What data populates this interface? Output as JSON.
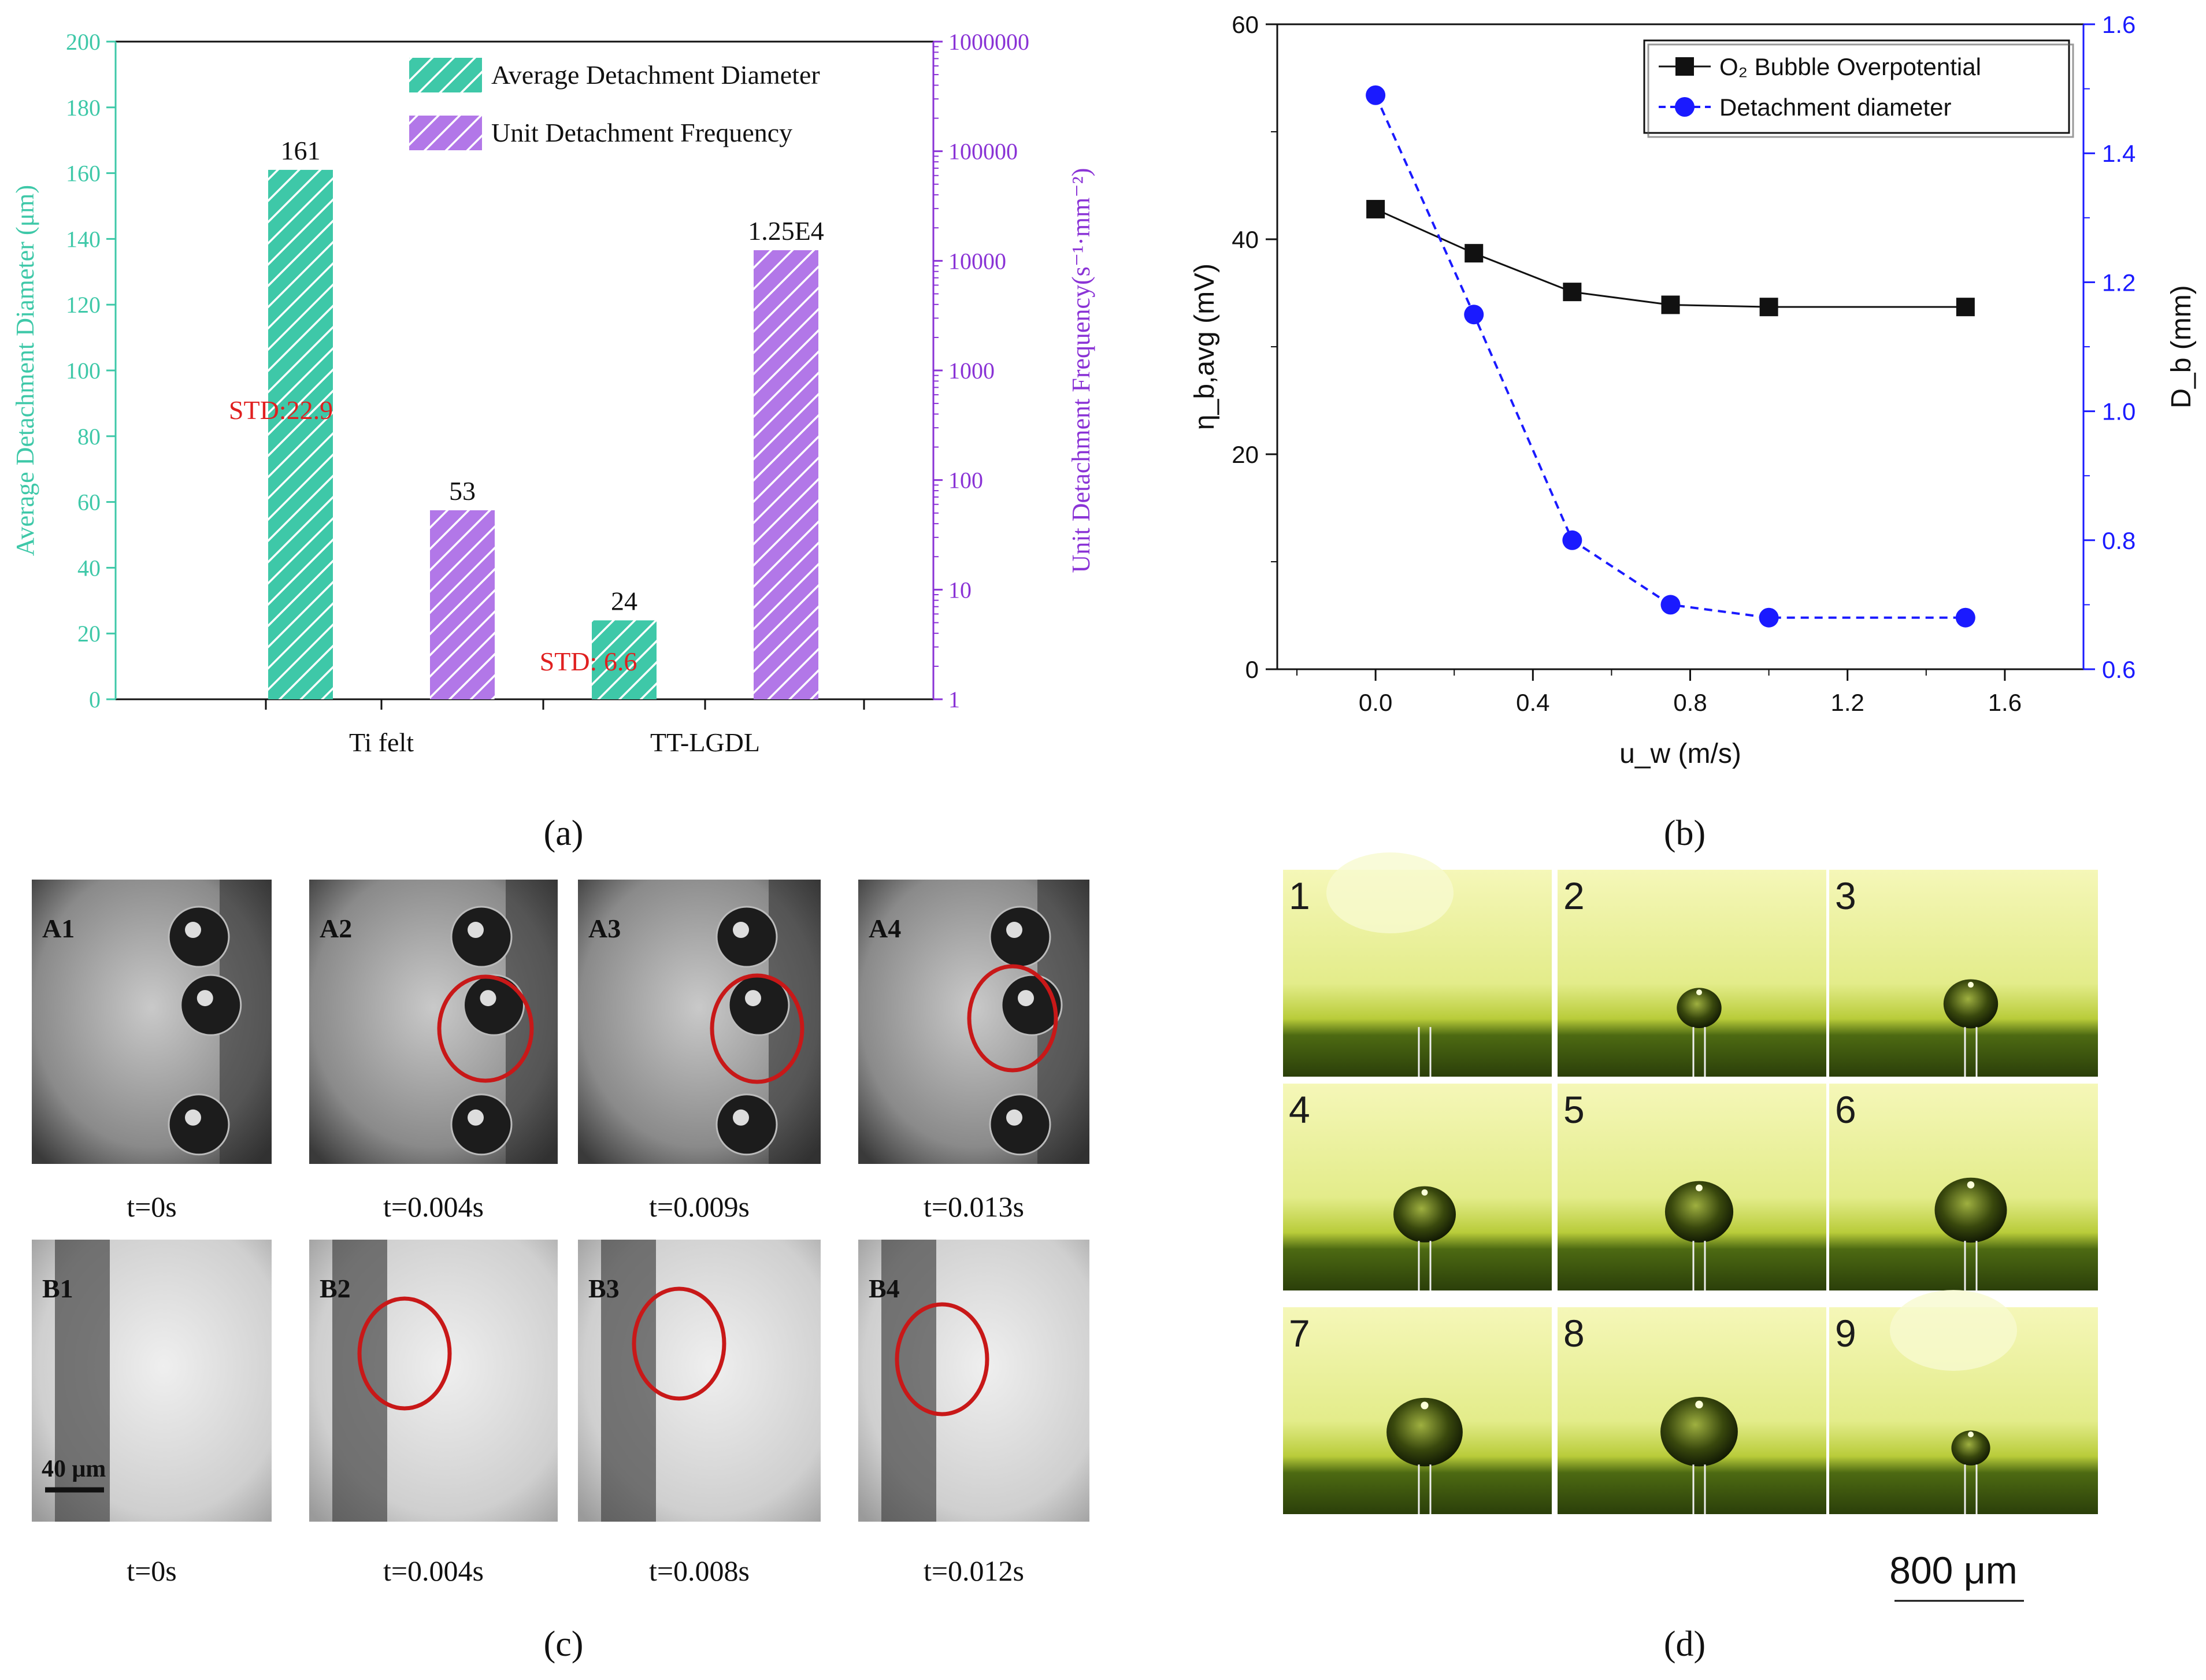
{
  "panel_labels": {
    "a": "(a)",
    "b": "(b)",
    "c": "(c)",
    "d": "(d)"
  },
  "colors": {
    "teal": "#3ec8a8",
    "purple": "#b277e8",
    "purple_axis": "#8a33d6",
    "red": "#e02020",
    "blue": "#1a1aff",
    "black": "#111111"
  },
  "chart_data": [
    {
      "id": "a",
      "type": "bar",
      "categories": [
        "Ti felt",
        "TT-LGDL"
      ],
      "series": [
        {
          "name": "Average Detachment Diameter",
          "axis": "left",
          "values": [
            161,
            24
          ],
          "labels": [
            "161",
            "24"
          ]
        },
        {
          "name": "Unit Detachment Frequency",
          "axis": "right-log",
          "values": [
            53,
            12500
          ],
          "labels": [
            "53",
            "1.25E4"
          ]
        }
      ],
      "annotations": [
        "STD:22.9",
        "STD: 6.6"
      ],
      "ylabel_left": "Average Detachment Diameter (μm)",
      "ylabel_right": "Unit Detachment Frequency(s⁻¹·mm⁻²)",
      "ylim_left": [
        0,
        200
      ],
      "yticks_left": [
        "0",
        "20",
        "40",
        "60",
        "80",
        "100",
        "120",
        "140",
        "160",
        "180",
        "200"
      ],
      "ylim_right_log": [
        1,
        1000000
      ],
      "yticks_right": [
        "1",
        "10",
        "100",
        "1000",
        "10000",
        "100000",
        "1000000"
      ],
      "legend_position": "top-right"
    },
    {
      "id": "b",
      "type": "line",
      "x": [
        0.0,
        0.25,
        0.5,
        0.75,
        1.0,
        1.5
      ],
      "series": [
        {
          "name": "O₂ Bubble Overpotential",
          "axis": "left",
          "values": [
            42.8,
            38.7,
            35.1,
            33.9,
            33.7,
            33.7
          ],
          "style": "solid-square-black"
        },
        {
          "name": "Detachment diameter",
          "axis": "right",
          "values": [
            1.49,
            1.15,
            0.8,
            0.7,
            0.68,
            0.68
          ],
          "style": "dashed-circle-blue"
        }
      ],
      "xlabel": "u_w (m/s)",
      "ylabel_left": "η_b,avg (mV)",
      "ylabel_right": "D_b (mm)",
      "xlim": [
        -0.25,
        1.8
      ],
      "xticks": [
        "0.0",
        "0.4",
        "0.8",
        "1.2",
        "1.6"
      ],
      "ylim_left": [
        0,
        60
      ],
      "yticks_left": [
        "0",
        "20",
        "40",
        "60"
      ],
      "ylim_right": [
        0.6,
        1.6
      ],
      "yticks_right": [
        "0.6",
        "0.8",
        "1.0",
        "1.2",
        "1.4",
        "1.6"
      ],
      "legend_position": "top-right"
    }
  ],
  "panel_c": {
    "row_a": [
      {
        "label": "A1",
        "time": "t=0s"
      },
      {
        "label": "A2",
        "time": "t=0.004s"
      },
      {
        "label": "A3",
        "time": "t=0.009s"
      },
      {
        "label": "A4",
        "time": "t=0.013s"
      }
    ],
    "row_b": [
      {
        "label": "B1",
        "time": "t=0s"
      },
      {
        "label": "B2",
        "time": "t=0.004s"
      },
      {
        "label": "B3",
        "time": "t=0.008s"
      },
      {
        "label": "B4",
        "time": "t=0.012s"
      }
    ],
    "scale_bar": "40 μm"
  },
  "panel_d": {
    "frames": [
      "1",
      "2",
      "3",
      "4",
      "5",
      "6",
      "7",
      "8",
      "9"
    ],
    "bubble_scale": [
      0,
      0.55,
      0.8,
      1.0,
      1.15,
      1.25,
      1.35,
      1.38,
      0.4
    ],
    "scale_bar": "800 μm"
  }
}
